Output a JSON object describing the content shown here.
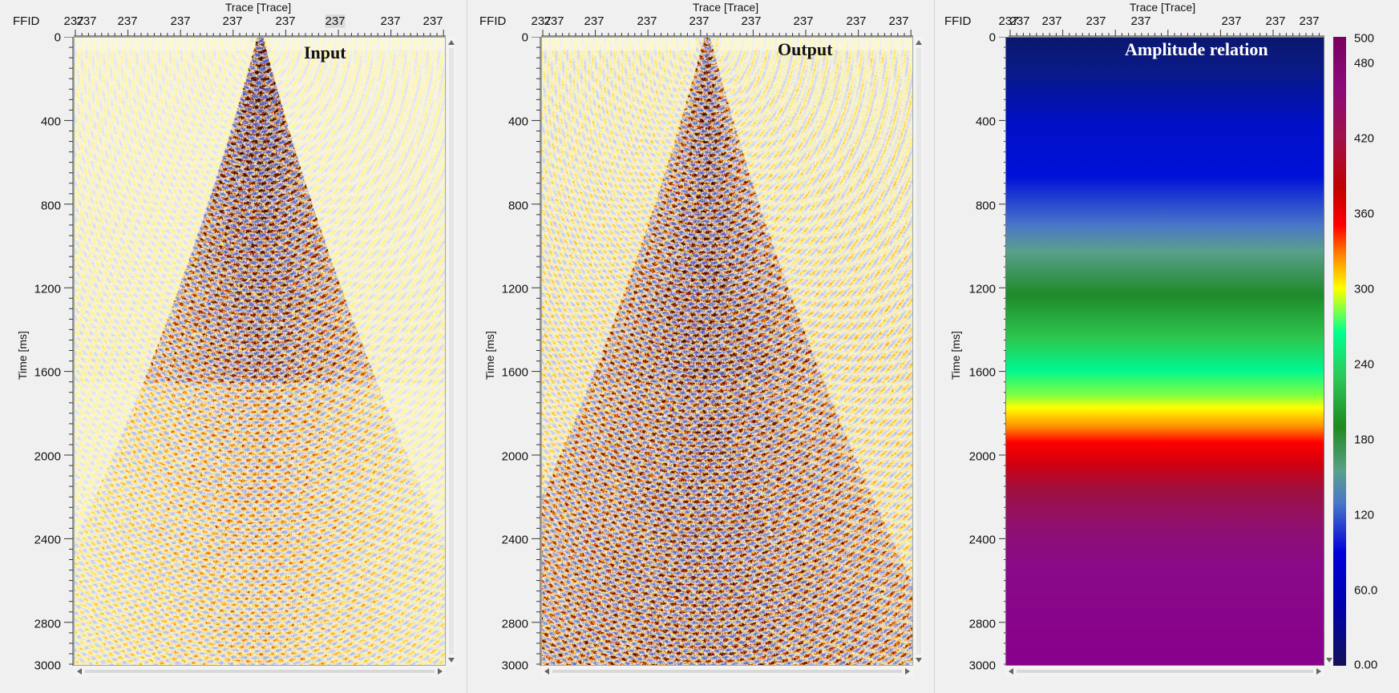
{
  "panels": [
    {
      "id": "input",
      "title": "Input",
      "x_axis_label": "Trace [Trace]",
      "row_label": "FFID",
      "y_axis_label": "Time [ms]",
      "x_ticks": [
        "237",
        "237",
        "237",
        "237",
        "237",
        "237",
        "237",
        "237",
        "237"
      ],
      "y_ticks": [
        "0",
        "400",
        "800",
        "1200",
        "1600",
        "2000",
        "2400",
        "2800",
        "3000"
      ]
    },
    {
      "id": "output",
      "title": "Output",
      "x_axis_label": "Trace [Trace]",
      "row_label": "FFID",
      "y_axis_label": "Time [ms]",
      "x_ticks": [
        "237",
        "237",
        "237",
        "237",
        "237",
        "237",
        "237",
        "237",
        "237"
      ],
      "y_ticks": [
        "0",
        "400",
        "800",
        "1200",
        "1600",
        "2000",
        "2400",
        "2800",
        "3000"
      ]
    },
    {
      "id": "amplitude",
      "title": "Amplitude relation",
      "x_axis_label": "Trace [Trace]",
      "row_label": "FFID",
      "y_axis_label": "Time [ms]",
      "x_ticks": [
        "237",
        "237",
        "237",
        "237",
        "237",
        "237",
        "237",
        "237"
      ],
      "y_ticks": [
        "0",
        "400",
        "800",
        "1200",
        "1600",
        "2000",
        "2400",
        "2800",
        "3000"
      ]
    }
  ],
  "colorbar": {
    "ticks": [
      "500",
      "480",
      "420",
      "360",
      "300",
      "240",
      "180",
      "120",
      "60.0",
      "0.00"
    ]
  }
}
